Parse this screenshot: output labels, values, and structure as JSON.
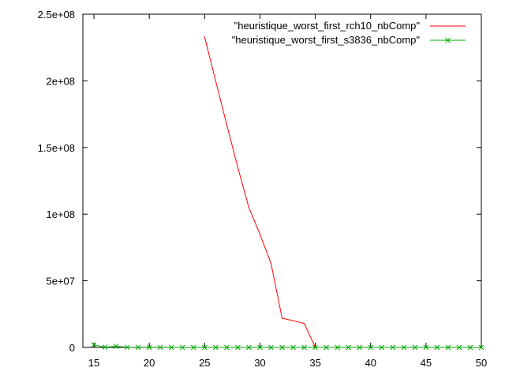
{
  "chart_data": {
    "type": "line",
    "title": "",
    "xlabel": "",
    "ylabel": "",
    "xlim": [
      14,
      50
    ],
    "ylim": [
      0,
      250000000
    ],
    "x_ticks": [
      15,
      20,
      25,
      30,
      35,
      40,
      45,
      50
    ],
    "x_tick_labels": [
      "15",
      "20",
      "25",
      "30",
      "35",
      "40",
      "45",
      "50"
    ],
    "y_ticks": [
      0,
      50000000,
      100000000,
      150000000,
      200000000,
      250000000
    ],
    "y_tick_labels": [
      "0",
      "5e+07",
      "1e+08",
      "1.5e+08",
      "2e+08",
      "2.5e+08"
    ],
    "grid": false,
    "legend_position": "top-right",
    "series": [
      {
        "name": "\"heuristique_worst_first_rch10_nbComp\"",
        "color": "#ff0000",
        "marker": "none",
        "x": [
          25,
          26,
          27,
          28,
          29,
          30,
          31,
          32,
          33,
          34,
          35,
          36,
          37,
          38,
          39,
          40,
          41,
          42,
          43,
          44,
          45,
          46,
          47,
          48,
          49,
          50
        ],
        "y": [
          233000000,
          200000000,
          167000000,
          135000000,
          105000000,
          85000000,
          63000000,
          22000000,
          20000000,
          18000000,
          0,
          0,
          0,
          0,
          0,
          0,
          0,
          0,
          0,
          0,
          0,
          0,
          0,
          0,
          0,
          0
        ]
      },
      {
        "name": "\"heuristique_worst_first_s3836_nbComp\"",
        "color": "#00aa00",
        "marker": "x",
        "x": [
          15,
          16,
          17,
          18,
          19,
          20,
          21,
          22,
          23,
          24,
          25,
          26,
          27,
          28,
          29,
          30,
          31,
          32,
          33,
          34,
          35,
          36,
          37,
          38,
          39,
          40,
          41,
          42,
          43,
          44,
          45,
          46,
          47,
          48,
          49,
          50
        ],
        "y": [
          2000000,
          200000,
          800000,
          100000,
          50000,
          50000,
          30000,
          20000,
          20000,
          20000,
          20000,
          10000,
          10000,
          10000,
          10000,
          10000,
          10000,
          10000,
          10000,
          10000,
          10000,
          10000,
          10000,
          10000,
          10000,
          10000,
          10000,
          10000,
          10000,
          10000,
          10000,
          10000,
          10000,
          10000,
          10000,
          10000
        ]
      }
    ]
  }
}
